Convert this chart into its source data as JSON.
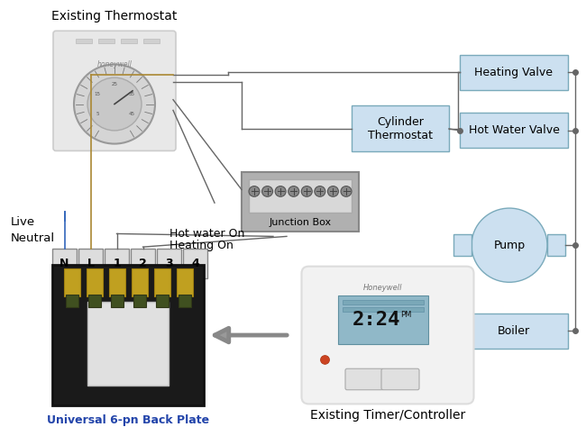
{
  "bg_color": "#ffffff",
  "box_color": "#cce0f0",
  "box_edge": "#7aaabb",
  "line_color": "#666666",
  "live_color": "#aa8833",
  "neutral_color": "#3366bb",
  "arrow_color": "#888888",
  "label_color": "#000000",
  "terminal_labels": [
    "N",
    "L",
    "1",
    "2",
    "3",
    "4"
  ],
  "figw": 6.5,
  "figh": 4.74
}
